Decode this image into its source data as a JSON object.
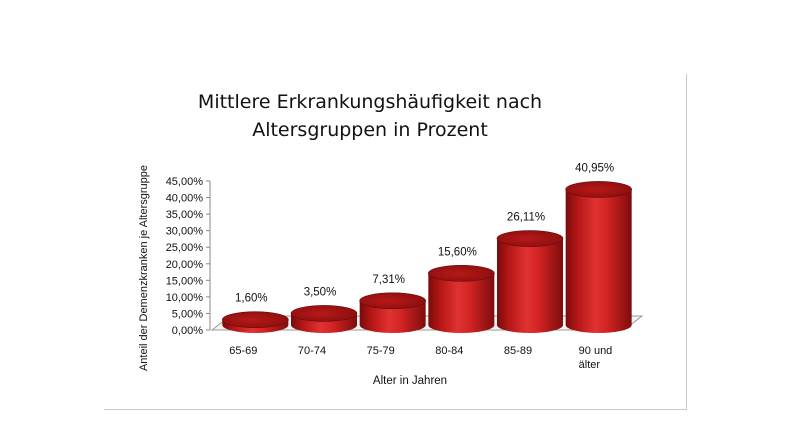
{
  "chart_data": {
    "type": "bar",
    "title": [
      "Mittlere Erkrankungshäufigkeit nach",
      "Altersgruppen in Prozent"
    ],
    "xlabel": "Alter in Jahren",
    "ylabel": "Anteil der Demenzkranken je Altersgruppe",
    "categories": [
      [
        "65-69"
      ],
      [
        "70-74"
      ],
      [
        "75-79"
      ],
      [
        "80-84"
      ],
      [
        "85-89"
      ],
      [
        "90 und",
        "älter"
      ]
    ],
    "values": [
      1.6,
      3.5,
      7.31,
      15.6,
      26.11,
      40.95
    ],
    "data_labels": [
      "1,60%",
      "3,50%",
      "7,31%",
      "15,60%",
      "26,11%",
      "40,95%"
    ],
    "y_ticks": [
      "0,00%",
      "5,00%",
      "10,00%",
      "15,00%",
      "20,00%",
      "25,00%",
      "30,00%",
      "35,00%",
      "40,00%",
      "45,00%"
    ],
    "ylim": [
      0,
      45
    ],
    "grid": false,
    "bar_color": "#c41a1a",
    "legend": "none"
  }
}
